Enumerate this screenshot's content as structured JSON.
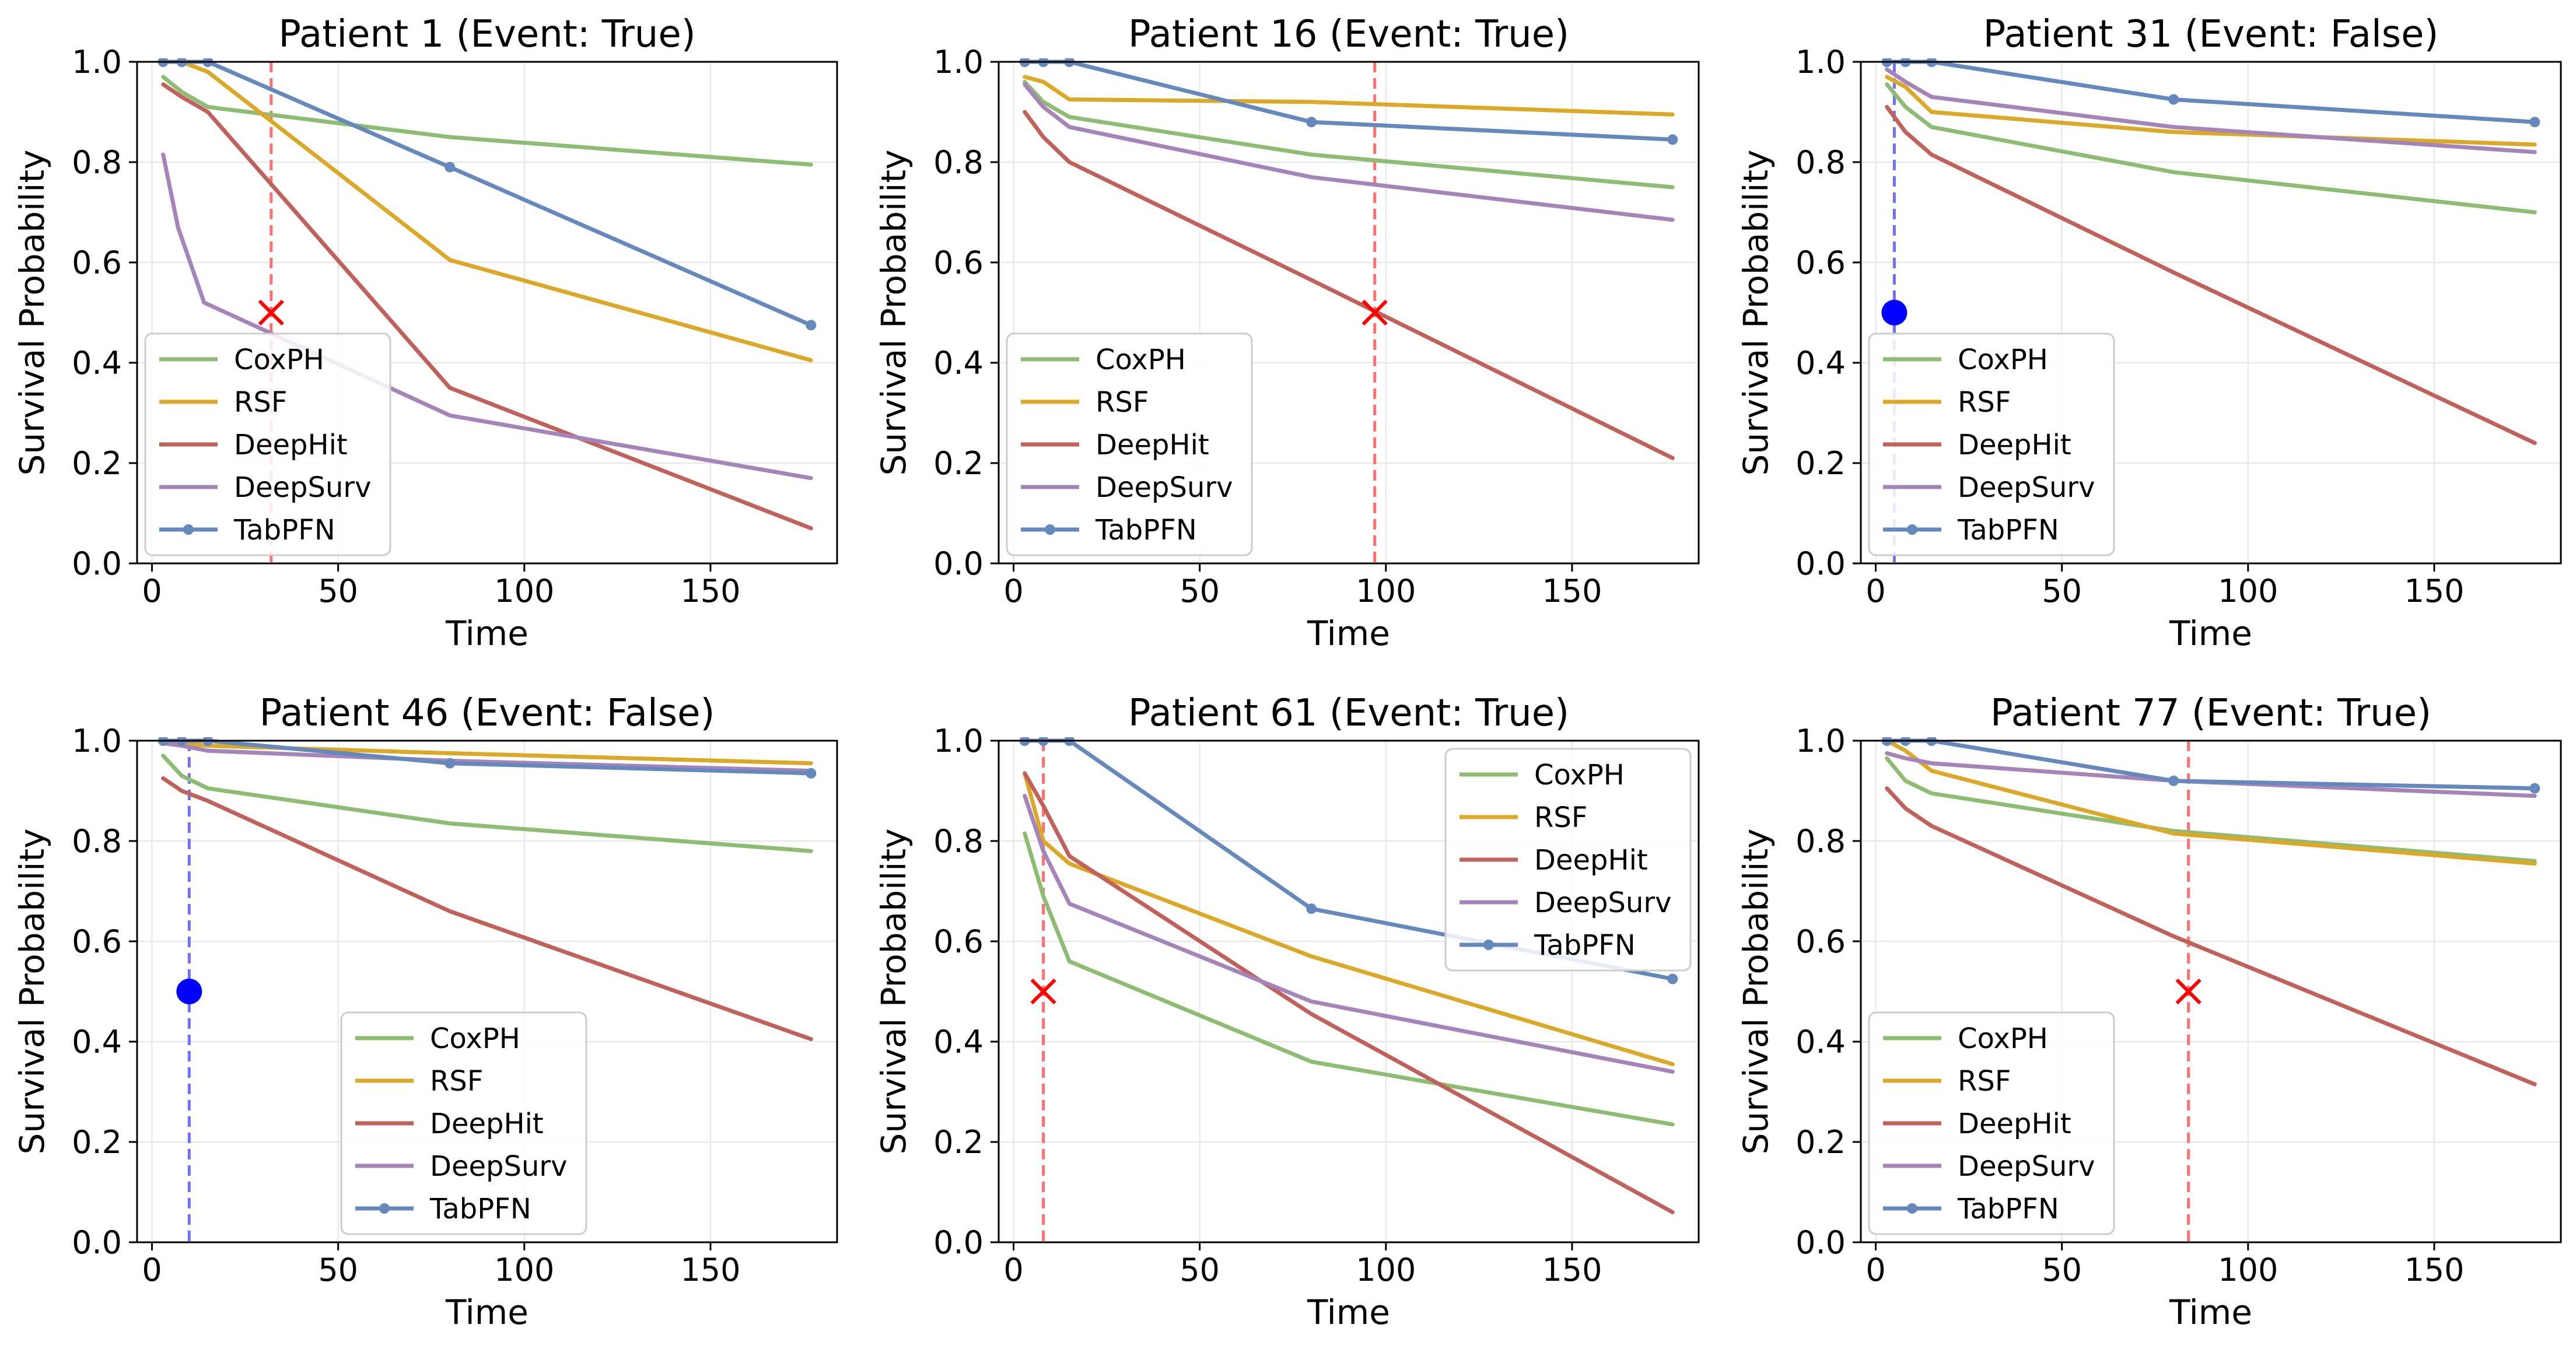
{
  "figure": {
    "colors": {
      "CoxPH": "#8fbc73",
      "RSF": "#dba827",
      "DeepHit": "#c0625b",
      "DeepSurv": "#a585b9",
      "TabPFN": "#6589bd",
      "event_marker": "#ff0000",
      "censor_marker": "#0000ff",
      "event_line": "#ff7070",
      "censor_line": "#7070ff",
      "grid": "#e6e6e6"
    }
  },
  "chart_data": [
    {
      "type": "line",
      "title": "Patient 1 (Event: True)",
      "xlabel": "Time",
      "ylabel": "Survival Probability",
      "xlim": [
        -4,
        184
      ],
      "ylim": [
        0,
        1
      ],
      "xticks": [
        0,
        50,
        100,
        150
      ],
      "yticks": [
        0.0,
        0.2,
        0.4,
        0.6,
        0.8,
        1.0
      ],
      "legend_loc": "lower-left",
      "event": {
        "time": 32,
        "observed": true,
        "marker_y": 0.5,
        "marker": "x"
      },
      "series": [
        {
          "name": "CoxPH",
          "x": [
            3,
            8,
            15,
            80,
            177
          ],
          "y": [
            0.97,
            0.94,
            0.91,
            0.85,
            0.795
          ]
        },
        {
          "name": "RSF",
          "x": [
            3,
            8,
            15,
            80,
            177
          ],
          "y": [
            1.0,
            1.0,
            0.98,
            0.605,
            0.405
          ]
        },
        {
          "name": "DeepHit",
          "x": [
            3,
            8,
            15,
            80,
            177
          ],
          "y": [
            0.955,
            0.93,
            0.9,
            0.35,
            0.07
          ]
        },
        {
          "name": "DeepSurv",
          "x": [
            3,
            7,
            14,
            80,
            177
          ],
          "y": [
            0.815,
            0.67,
            0.52,
            0.295,
            0.17
          ]
        },
        {
          "name": "TabPFN",
          "x": [
            3,
            8,
            15,
            80,
            177
          ],
          "y": [
            1.0,
            1.0,
            1.0,
            0.79,
            0.475
          ],
          "markers": true
        }
      ]
    },
    {
      "type": "line",
      "title": "Patient 16 (Event: True)",
      "xlabel": "Time",
      "ylabel": "Survival Probability",
      "xlim": [
        -4,
        184
      ],
      "ylim": [
        0,
        1
      ],
      "xticks": [
        0,
        50,
        100,
        150
      ],
      "yticks": [
        0.0,
        0.2,
        0.4,
        0.6,
        0.8,
        1.0
      ],
      "legend_loc": "lower-left",
      "event": {
        "time": 97,
        "observed": true,
        "marker_y": 0.5,
        "marker": "x"
      },
      "series": [
        {
          "name": "CoxPH",
          "x": [
            3,
            8,
            15,
            80,
            177
          ],
          "y": [
            0.96,
            0.92,
            0.89,
            0.815,
            0.75
          ]
        },
        {
          "name": "RSF",
          "x": [
            3,
            8,
            15,
            80,
            177
          ],
          "y": [
            0.97,
            0.96,
            0.925,
            0.92,
            0.895
          ]
        },
        {
          "name": "DeepHit",
          "x": [
            3,
            8,
            15,
            80,
            177
          ],
          "y": [
            0.9,
            0.85,
            0.8,
            0.565,
            0.21
          ]
        },
        {
          "name": "DeepSurv",
          "x": [
            3,
            8,
            15,
            80,
            177
          ],
          "y": [
            0.955,
            0.91,
            0.87,
            0.77,
            0.685
          ]
        },
        {
          "name": "TabPFN",
          "x": [
            3,
            8,
            15,
            80,
            177
          ],
          "y": [
            1.0,
            1.0,
            1.0,
            0.88,
            0.845
          ],
          "markers": true
        }
      ]
    },
    {
      "type": "line",
      "title": "Patient 31 (Event: False)",
      "xlabel": "Time",
      "ylabel": "Survival Probability",
      "xlim": [
        -4,
        184
      ],
      "ylim": [
        0,
        1
      ],
      "xticks": [
        0,
        50,
        100,
        150
      ],
      "yticks": [
        0.0,
        0.2,
        0.4,
        0.6,
        0.8,
        1.0
      ],
      "legend_loc": "lower-left",
      "event": {
        "time": 5,
        "observed": false,
        "marker_y": 0.5,
        "marker": "o"
      },
      "series": [
        {
          "name": "CoxPH",
          "x": [
            3,
            8,
            15,
            80,
            177
          ],
          "y": [
            0.955,
            0.91,
            0.87,
            0.78,
            0.7
          ]
        },
        {
          "name": "RSF",
          "x": [
            3,
            8,
            15,
            80,
            177
          ],
          "y": [
            0.97,
            0.95,
            0.9,
            0.86,
            0.835
          ]
        },
        {
          "name": "DeepHit",
          "x": [
            3,
            8,
            15,
            80,
            177
          ],
          "y": [
            0.91,
            0.86,
            0.815,
            0.58,
            0.24
          ]
        },
        {
          "name": "DeepSurv",
          "x": [
            3,
            8,
            15,
            80,
            177
          ],
          "y": [
            0.985,
            0.96,
            0.93,
            0.87,
            0.82
          ]
        },
        {
          "name": "TabPFN",
          "x": [
            3,
            8,
            15,
            80,
            177
          ],
          "y": [
            1.0,
            1.0,
            1.0,
            0.925,
            0.88
          ],
          "markers": true
        }
      ]
    },
    {
      "type": "line",
      "title": "Patient 46 (Event: False)",
      "xlabel": "Time",
      "ylabel": "Survival Probability",
      "xlim": [
        -4,
        184
      ],
      "ylim": [
        0,
        1
      ],
      "xticks": [
        0,
        50,
        100,
        150
      ],
      "yticks": [
        0.0,
        0.2,
        0.4,
        0.6,
        0.8,
        1.0
      ],
      "legend_loc": "lower-center",
      "event": {
        "time": 10,
        "observed": false,
        "marker_y": 0.5,
        "marker": "o"
      },
      "series": [
        {
          "name": "CoxPH",
          "x": [
            3,
            8,
            15,
            80,
            177
          ],
          "y": [
            0.97,
            0.93,
            0.905,
            0.835,
            0.78
          ]
        },
        {
          "name": "RSF",
          "x": [
            3,
            8,
            15,
            80,
            177
          ],
          "y": [
            1.0,
            0.995,
            0.99,
            0.975,
            0.955
          ]
        },
        {
          "name": "DeepHit",
          "x": [
            3,
            8,
            15,
            80,
            177
          ],
          "y": [
            0.925,
            0.9,
            0.88,
            0.66,
            0.405
          ]
        },
        {
          "name": "DeepSurv",
          "x": [
            3,
            8,
            15,
            80,
            177
          ],
          "y": [
            0.995,
            0.99,
            0.98,
            0.96,
            0.94
          ]
        },
        {
          "name": "TabPFN",
          "x": [
            3,
            8,
            15,
            80,
            177
          ],
          "y": [
            1.0,
            1.0,
            1.0,
            0.955,
            0.935
          ],
          "markers": true
        }
      ]
    },
    {
      "type": "line",
      "title": "Patient 61 (Event: True)",
      "xlabel": "Time",
      "ylabel": "Survival Probability",
      "xlim": [
        -4,
        184
      ],
      "ylim": [
        0,
        1
      ],
      "xticks": [
        0,
        50,
        100,
        150
      ],
      "yticks": [
        0.0,
        0.2,
        0.4,
        0.6,
        0.8,
        1.0
      ],
      "legend_loc": "upper-right",
      "event": {
        "time": 8,
        "observed": true,
        "marker_y": 0.5,
        "marker": "x"
      },
      "series": [
        {
          "name": "CoxPH",
          "x": [
            3,
            8,
            15,
            80,
            177
          ],
          "y": [
            0.815,
            0.69,
            0.56,
            0.36,
            0.235
          ]
        },
        {
          "name": "RSF",
          "x": [
            3,
            8,
            15,
            80,
            177
          ],
          "y": [
            0.935,
            0.8,
            0.755,
            0.57,
            0.355
          ]
        },
        {
          "name": "DeepHit",
          "x": [
            3,
            8,
            15,
            80,
            177
          ],
          "y": [
            0.935,
            0.87,
            0.77,
            0.455,
            0.06
          ]
        },
        {
          "name": "DeepSurv",
          "x": [
            3,
            8,
            15,
            80,
            177
          ],
          "y": [
            0.89,
            0.78,
            0.675,
            0.48,
            0.34
          ]
        },
        {
          "name": "TabPFN",
          "x": [
            3,
            8,
            15,
            80,
            177
          ],
          "y": [
            1.0,
            1.0,
            1.0,
            0.665,
            0.525
          ],
          "markers": true
        }
      ]
    },
    {
      "type": "line",
      "title": "Patient 77 (Event: True)",
      "xlabel": "Time",
      "ylabel": "Survival Probability",
      "xlim": [
        -4,
        184
      ],
      "ylim": [
        0,
        1
      ],
      "xticks": [
        0,
        50,
        100,
        150
      ],
      "yticks": [
        0.0,
        0.2,
        0.4,
        0.6,
        0.8,
        1.0
      ],
      "legend_loc": "lower-left",
      "event": {
        "time": 84,
        "observed": true,
        "marker_y": 0.5,
        "marker": "x"
      },
      "series": [
        {
          "name": "CoxPH",
          "x": [
            3,
            8,
            15,
            80,
            177
          ],
          "y": [
            0.965,
            0.92,
            0.895,
            0.82,
            0.76
          ]
        },
        {
          "name": "RSF",
          "x": [
            3,
            8,
            15,
            80,
            177
          ],
          "y": [
            1.0,
            0.98,
            0.94,
            0.815,
            0.755
          ]
        },
        {
          "name": "DeepHit",
          "x": [
            3,
            8,
            15,
            80,
            177
          ],
          "y": [
            0.905,
            0.865,
            0.83,
            0.61,
            0.315
          ]
        },
        {
          "name": "DeepSurv",
          "x": [
            3,
            8,
            15,
            80,
            177
          ],
          "y": [
            0.975,
            0.965,
            0.955,
            0.92,
            0.89
          ]
        },
        {
          "name": "TabPFN",
          "x": [
            3,
            8,
            15,
            80,
            177
          ],
          "y": [
            1.0,
            1.0,
            1.0,
            0.92,
            0.905
          ],
          "markers": true
        }
      ]
    }
  ]
}
